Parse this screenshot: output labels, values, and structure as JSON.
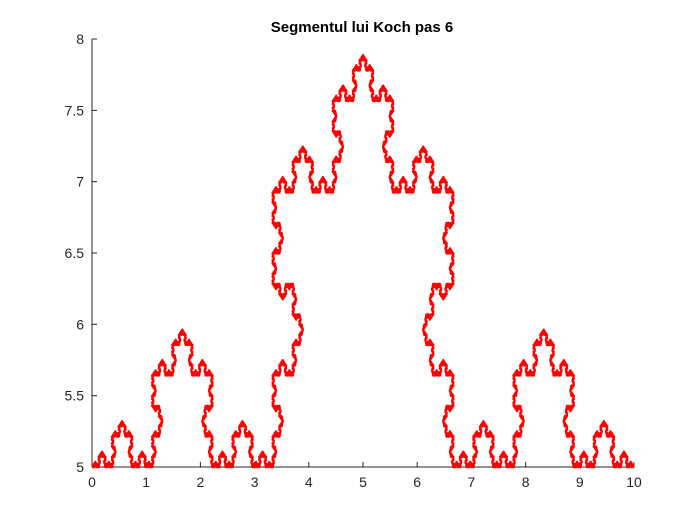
{
  "chart_data": {
    "type": "line",
    "title": "Segmentul lui Koch pas 6",
    "xlabel": "",
    "ylabel": "",
    "xlim": [
      0,
      10
    ],
    "ylim": [
      5,
      8
    ],
    "x_ticks": [
      0,
      1,
      2,
      3,
      4,
      5,
      6,
      7,
      8,
      9,
      10
    ],
    "y_ticks": [
      5,
      5.5,
      6,
      6.5,
      7,
      7.5,
      8
    ],
    "x_tick_labels": [
      "0",
      "1",
      "2",
      "3",
      "4",
      "5",
      "6",
      "7",
      "8",
      "9",
      "10"
    ],
    "y_tick_labels": [
      "5",
      "5.5",
      "6",
      "6.5",
      "7",
      "7.5",
      "8"
    ],
    "grid": false,
    "curve": {
      "kind": "koch",
      "iterations": 6,
      "start": [
        0,
        5
      ],
      "end": [
        10,
        5
      ],
      "color": "#ff0000"
    }
  }
}
